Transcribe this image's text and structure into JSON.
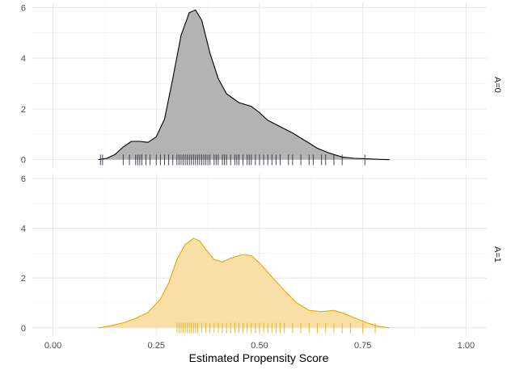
{
  "chart_data": {
    "type": "area",
    "xlabel": "Estimated Propensity Score",
    "ylabel": "",
    "title": "",
    "xlim": [
      -0.05,
      1.05
    ],
    "ylim": [
      -0.3,
      6.2
    ],
    "x_ticks": [
      0.0,
      0.25,
      0.5,
      0.75,
      1.0
    ],
    "x_tick_labels": [
      "0.00",
      "0.25",
      "0.50",
      "0.75",
      "1.00"
    ],
    "y_ticks": [
      0,
      2,
      4,
      6
    ],
    "y_tick_labels": [
      "0",
      "2",
      "4",
      "6"
    ],
    "grid": true,
    "facets": [
      {
        "label": "A=0",
        "fill": "#b3b3b3",
        "line": "#000000",
        "rug_color": "#1f1a2b",
        "density": {
          "x": [
            0.11,
            0.13,
            0.15,
            0.17,
            0.19,
            0.21,
            0.23,
            0.25,
            0.27,
            0.29,
            0.31,
            0.33,
            0.345,
            0.36,
            0.38,
            0.4,
            0.42,
            0.45,
            0.48,
            0.5,
            0.52,
            0.55,
            0.58,
            0.61,
            0.64,
            0.67,
            0.7,
            0.73,
            0.76,
            0.79,
            0.815
          ],
          "y": [
            0.0,
            0.05,
            0.2,
            0.5,
            0.72,
            0.72,
            0.68,
            0.9,
            1.6,
            3.2,
            4.9,
            5.8,
            5.9,
            5.5,
            4.2,
            3.2,
            2.6,
            2.25,
            2.1,
            1.85,
            1.55,
            1.3,
            1.05,
            0.75,
            0.45,
            0.25,
            0.1,
            0.05,
            0.03,
            0.01,
            0.0
          ]
        },
        "rug": [
          0.115,
          0.12,
          0.17,
          0.185,
          0.2,
          0.205,
          0.21,
          0.215,
          0.225,
          0.235,
          0.25,
          0.26,
          0.27,
          0.28,
          0.29,
          0.3,
          0.305,
          0.31,
          0.315,
          0.32,
          0.325,
          0.33,
          0.335,
          0.34,
          0.345,
          0.35,
          0.355,
          0.36,
          0.365,
          0.37,
          0.375,
          0.38,
          0.39,
          0.395,
          0.4,
          0.41,
          0.415,
          0.42,
          0.43,
          0.44,
          0.445,
          0.45,
          0.46,
          0.47,
          0.475,
          0.48,
          0.49,
          0.5,
          0.51,
          0.52,
          0.53,
          0.54,
          0.55,
          0.57,
          0.58,
          0.6,
          0.62,
          0.63,
          0.65,
          0.66,
          0.68,
          0.7,
          0.755
        ]
      },
      {
        "label": "A=1",
        "fill": "#f8dfa6",
        "line": "#e6a800",
        "rug_color": "#e6a800",
        "density": {
          "x": [
            0.11,
            0.14,
            0.17,
            0.2,
            0.23,
            0.26,
            0.28,
            0.3,
            0.32,
            0.34,
            0.355,
            0.37,
            0.39,
            0.41,
            0.43,
            0.46,
            0.48,
            0.5,
            0.53,
            0.56,
            0.59,
            0.62,
            0.65,
            0.68,
            0.7,
            0.73,
            0.76,
            0.79,
            0.815
          ],
          "y": [
            0.0,
            0.08,
            0.2,
            0.38,
            0.62,
            1.15,
            1.8,
            2.75,
            3.35,
            3.6,
            3.5,
            3.15,
            2.75,
            2.65,
            2.8,
            2.95,
            2.9,
            2.6,
            2.05,
            1.5,
            1.0,
            0.7,
            0.65,
            0.7,
            0.6,
            0.4,
            0.2,
            0.05,
            0.0
          ]
        },
        "rug": [
          0.3,
          0.305,
          0.31,
          0.315,
          0.32,
          0.325,
          0.33,
          0.335,
          0.34,
          0.345,
          0.35,
          0.36,
          0.37,
          0.38,
          0.39,
          0.4,
          0.41,
          0.42,
          0.43,
          0.44,
          0.45,
          0.46,
          0.47,
          0.48,
          0.49,
          0.5,
          0.51,
          0.52,
          0.53,
          0.54,
          0.55,
          0.56,
          0.58,
          0.6,
          0.62,
          0.64,
          0.66,
          0.68,
          0.7,
          0.72,
          0.75,
          0.78
        ]
      }
    ]
  }
}
